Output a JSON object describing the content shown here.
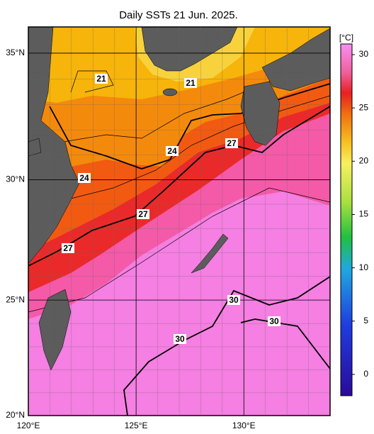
{
  "map": {
    "title": "Daily SSTs 21 Jun. 2025.",
    "lon_range": [
      120,
      134
    ],
    "lat_range": [
      20,
      36
    ],
    "lon_ticks": [
      {
        "value": 120,
        "label": "120°E"
      },
      {
        "value": 125,
        "label": "125°E"
      },
      {
        "value": 130,
        "label": "130°E"
      }
    ],
    "lat_ticks": [
      {
        "value": 20,
        "label": "20°N"
      },
      {
        "value": 25,
        "label": "25°N"
      },
      {
        "value": 30,
        "label": "30°N"
      },
      {
        "value": 35,
        "label": "35°N"
      }
    ],
    "colorbar": {
      "unit": "[°C]",
      "range": [
        -2,
        31
      ],
      "ticks": [
        0,
        5,
        10,
        15,
        20,
        25,
        30
      ]
    },
    "contour_labels": [
      "21",
      "21",
      "24",
      "27",
      "24",
      "27",
      "27",
      "30",
      "30",
      "30"
    ]
  }
}
